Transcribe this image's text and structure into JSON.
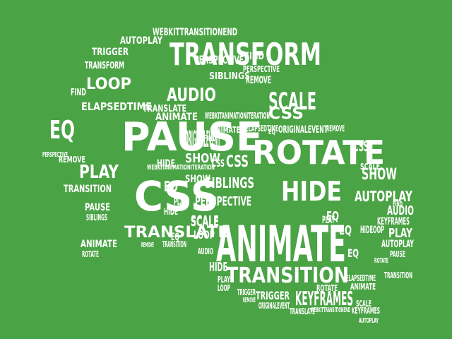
{
  "background_color": "#4aa344",
  "word_color": "#ffffff",
  "words": [
    "WEBKITTRANSITIONEND",
    "AUTOPLAY",
    "TRANSFORM",
    "TRIGGER",
    "FIND",
    "AUDIO",
    "PERSPECTIVE",
    "LOOP",
    "REMOVE",
    "CSS",
    "SCALE",
    "SIBLINGS",
    "ELAPSEDTIME",
    "TRANSLATE",
    "EQ",
    "PAUSE",
    "ORIGINALEVENT",
    "WEBKITANIMATIONITERATION",
    "ANIMATE",
    "SHOW",
    "ROTATE",
    "PLAY",
    "HIDE",
    "TRANSITION",
    "KEYFRAMES"
  ]
}
